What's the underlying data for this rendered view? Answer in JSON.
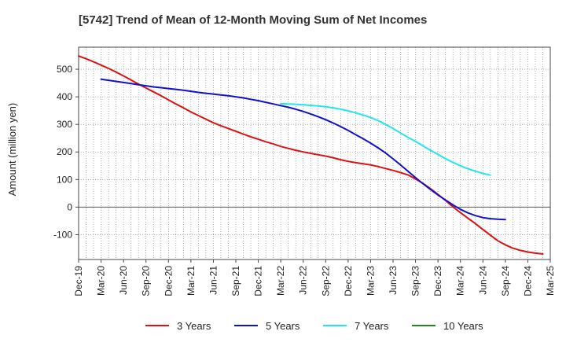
{
  "chart_data": {
    "type": "line",
    "title": "[5742]  Trend of Mean of 12-Month Moving Sum of Net Incomes",
    "xlabel": "",
    "ylabel": "Amount (million yen)",
    "ylim": [
      -190,
      580
    ],
    "yticks": [
      -100,
      0,
      100,
      200,
      300,
      400,
      500
    ],
    "x_tick_labels": [
      "Dec-19",
      "Mar-20",
      "Jun-20",
      "Sep-20",
      "Dec-20",
      "Mar-21",
      "Jun-21",
      "Sep-21",
      "Dec-21",
      "Mar-22",
      "Jun-22",
      "Sep-22",
      "Dec-22",
      "Mar-23",
      "Jun-23",
      "Sep-23",
      "Dec-23",
      "Mar-24",
      "Jun-24",
      "Sep-24",
      "Dec-24",
      "Mar-25"
    ],
    "x_months_total": 63,
    "grid": true,
    "legend_position": "bottom",
    "series": [
      {
        "name": "3 Years",
        "color": "#dd1111",
        "start_month": 0,
        "values": [
          548,
          538,
          527,
          515,
          503,
          490,
          476,
          461,
          446,
          432,
          418,
          404,
          389,
          374,
          360,
          345,
          332,
          319,
          306,
          295,
          285,
          275,
          265,
          255,
          246,
          237,
          229,
          220,
          213,
          206,
          200,
          195,
          190,
          185,
          179,
          172,
          166,
          161,
          157,
          153,
          147,
          140,
          133,
          125,
          117,
          102,
          86,
          67,
          46,
          24,
          1,
          -20,
          -40,
          -60,
          -81,
          -102,
          -122,
          -137,
          -149,
          -157,
          -163,
          -167,
          -170
        ]
      },
      {
        "name": "5 Years",
        "color": "#1111cc",
        "start_month": 3,
        "values": [
          464,
          460,
          456,
          452,
          448,
          444,
          440,
          436,
          433,
          430,
          427,
          424,
          420,
          416,
          413,
          410,
          407,
          404,
          400,
          396,
          391,
          386,
          380,
          374,
          368,
          362,
          355,
          347,
          338,
          328,
          317,
          305,
          292,
          278,
          263,
          248,
          232,
          215,
          196,
          175,
          153,
          130,
          107,
          85,
          64,
          44,
          26,
          8,
          -8,
          -21,
          -31,
          -38,
          -42,
          -44,
          -45
        ]
      },
      {
        "name": "7 Years",
        "color": "#22e6ee",
        "start_month": 27,
        "values": [
          375,
          374,
          373,
          371,
          369,
          367,
          364,
          360,
          355,
          349,
          342,
          334,
          325,
          314,
          300,
          285,
          269,
          253,
          238,
          222,
          206,
          191,
          176,
          162,
          150,
          139,
          130,
          122,
          116
        ]
      },
      {
        "name": "10 Years",
        "color": "#228822",
        "start_month": 0,
        "values": []
      }
    ]
  }
}
